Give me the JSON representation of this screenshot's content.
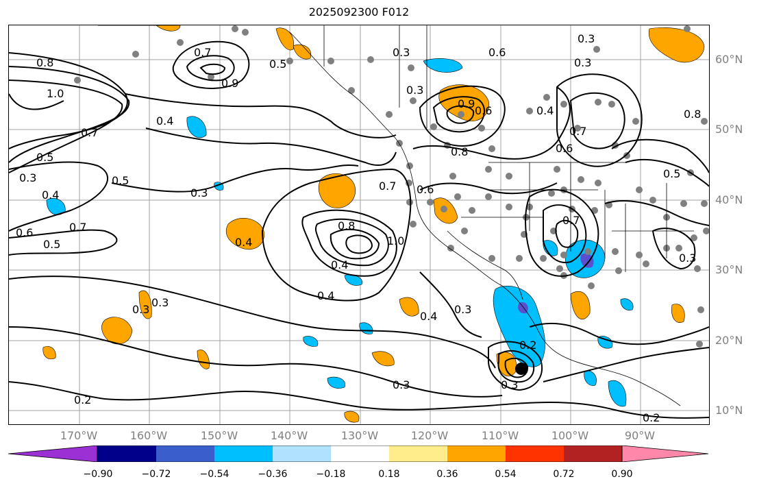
{
  "title": "2025092300 F012",
  "lat_labels": [
    "60°N",
    "50°N",
    "40°N",
    "30°N",
    "20°N",
    "10°N"
  ],
  "lon_labels": [
    "170°W",
    "160°W",
    "150°W",
    "140°W",
    "130°W",
    "120°W",
    "110°W",
    "100°W",
    "90°W"
  ],
  "colorbar": {
    "ticks": [
      "−0.90",
      "−0.72",
      "−0.54",
      "−0.36",
      "−0.18",
      "0.18",
      "0.36",
      "0.54",
      "0.72",
      "0.90"
    ],
    "colors": [
      "#9b30d4",
      "#00008b",
      "#3a5fcd",
      "#00bfff",
      "#b0e2ff",
      "#ffffff",
      "#ffec8b",
      "#ffa500",
      "#ff3300",
      "#b22222",
      "#ff88aa"
    ]
  },
  "contour_labels": [
    "0.8",
    "1.0",
    "0.7",
    "0.5",
    "0.3",
    "0.4",
    "0.6",
    "0.5",
    "0.7",
    "0.4",
    "0.3",
    "0.7",
    "0.5",
    "0.9",
    "0.4",
    "0.3",
    "0.8",
    "1.0",
    "0.4",
    "0.4",
    "0.3",
    "0.3",
    "0.7",
    "0.6",
    "0.5",
    "0.3",
    "0.6",
    "0.6",
    "0.3",
    "0.8",
    "0.4",
    "0.7",
    "0.6",
    "0.7",
    "0.8",
    "0.9",
    "0.5",
    "0.3",
    "0.4",
    "0.3",
    "0.3",
    "0.3",
    "0.2",
    "0.2",
    "0.3",
    "0.2"
  ],
  "colors": {
    "shade_orange": "#ffa500",
    "shade_blue": "#00bfff",
    "shade_purple": "#5a4fcf",
    "dot": "#808080",
    "grid": "#a0a0a0"
  }
}
